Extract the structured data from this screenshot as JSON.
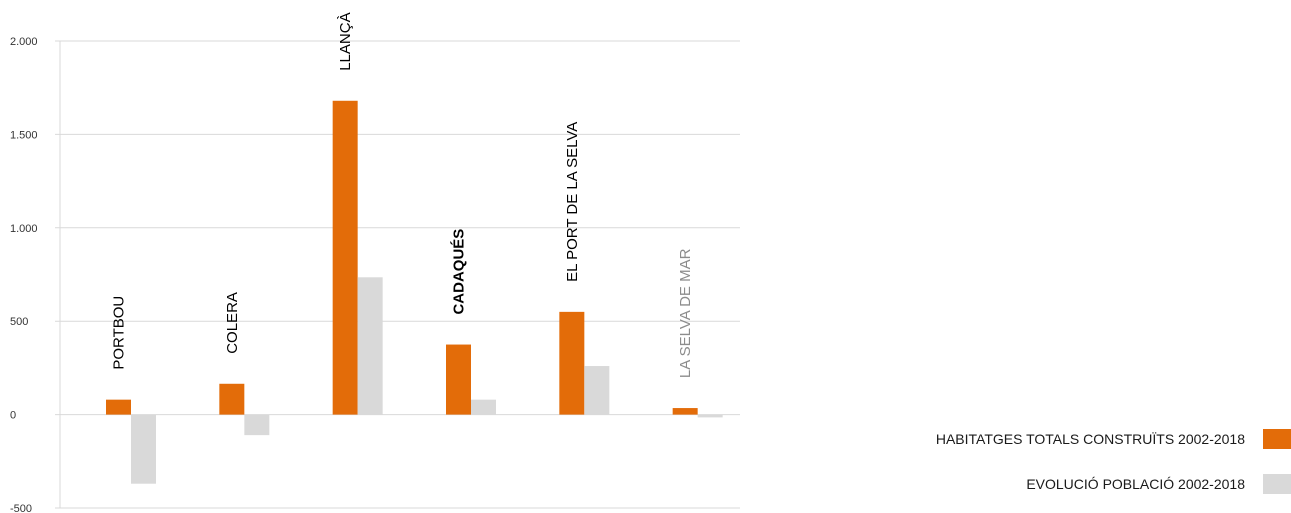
{
  "chart_data": {
    "type": "bar",
    "categories": [
      "PORTBOU",
      "COLERA",
      "LLANÇÀ",
      "CADAQUÉS",
      "EL PORT DE LA SELVA",
      "LA SELVA DE MAR"
    ],
    "category_styles": [
      {
        "bold": false,
        "color": "#000000"
      },
      {
        "bold": false,
        "color": "#000000"
      },
      {
        "bold": false,
        "color": "#000000"
      },
      {
        "bold": true,
        "color": "#000000"
      },
      {
        "bold": false,
        "color": "#000000"
      },
      {
        "bold": false,
        "color": "#8c8c8c"
      }
    ],
    "series": [
      {
        "name": "HABITATGES TOTALS CONSTRUÏTS 2002-2018",
        "color": "#e36c09",
        "values": [
          80,
          165,
          1680,
          375,
          550,
          35
        ]
      },
      {
        "name": "EVOLUCIÓ POBLACIÓ 2002-2018",
        "color": "#d9d9d9",
        "values": [
          -370,
          -110,
          735,
          80,
          260,
          -15
        ]
      }
    ],
    "ylim": [
      -500,
      2000
    ],
    "yticks": [
      -500,
      0,
      500,
      1000,
      1500,
      2000
    ],
    "ytick_labels": [
      "-500",
      "0",
      "500",
      "1.000",
      "1.500",
      "2.000"
    ],
    "grid": true,
    "legend_position": "bottom-right",
    "title": "",
    "xlabel": "",
    "ylabel": ""
  }
}
